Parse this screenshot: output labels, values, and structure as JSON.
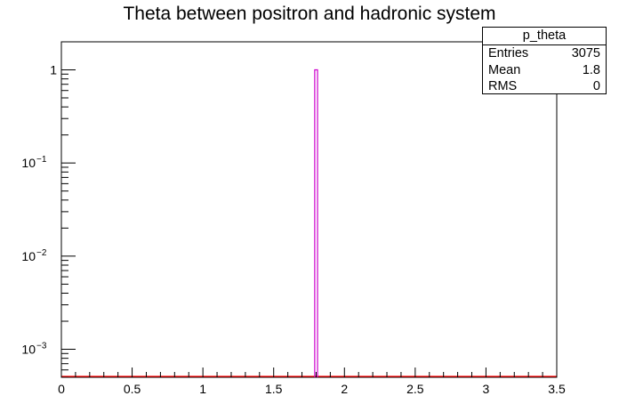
{
  "chart_data": {
    "type": "histogram",
    "title": "Theta between positron and hadronic system",
    "xlabel": "",
    "ylabel": "",
    "xlim": [
      0,
      3.5
    ],
    "ylim": [
      0.0005,
      2
    ],
    "log_y": true,
    "x_ticks": [
      "0",
      "0.5",
      "1",
      "1.5",
      "2",
      "2.5",
      "3",
      "3.5"
    ],
    "x_tick_values": [
      0,
      0.5,
      1,
      1.5,
      2,
      2.5,
      3,
      3.5
    ],
    "y_ticks": [
      {
        "value": 1,
        "mantissa": "1",
        "exp": ""
      },
      {
        "value": 0.1,
        "mantissa": "10",
        "exp": "−1"
      },
      {
        "value": 0.01,
        "mantissa": "10",
        "exp": "−2"
      },
      {
        "value": 0.001,
        "mantissa": "10",
        "exp": "−3"
      }
    ],
    "bins": [
      {
        "x_low": 1.79,
        "x_high": 1.81,
        "value": 1.0
      }
    ],
    "series": [
      {
        "type": "histogram",
        "color": "#cc00cc"
      },
      {
        "type": "baseline",
        "color": "#ff0000"
      }
    ],
    "grid": false,
    "legend_position": "top-right"
  },
  "stats_box": {
    "name": "p_theta",
    "rows": [
      {
        "label": "Entries",
        "value": "3075"
      },
      {
        "label": "Mean",
        "value": "1.8"
      },
      {
        "label": "RMS",
        "value": "0"
      }
    ]
  }
}
